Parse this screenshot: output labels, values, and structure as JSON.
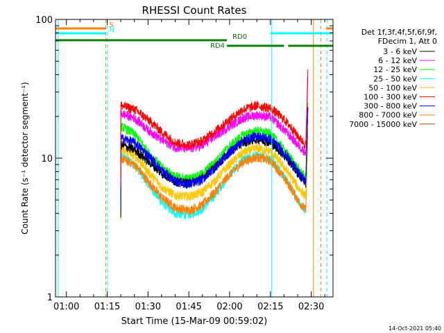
{
  "chart_data": {
    "type": "line",
    "title": "RHESSI Count Rates",
    "xlabel": "Start Time (15-Mar-09 00:59:02)",
    "ylabel": "Count Rate (s⁻¹ detector segment⁻¹)",
    "yscale": "log",
    "ylim": [
      1,
      100
    ],
    "xlim_minutes": [
      -4,
      98
    ],
    "x_tick_labels": [
      "01:00",
      "01:15",
      "01:30",
      "01:45",
      "02:00",
      "02:15",
      "02:30"
    ],
    "x_tick_minutes": [
      0,
      15,
      30,
      45,
      60,
      75,
      90
    ],
    "y_tick_labels": [
      "1",
      "10",
      "100"
    ],
    "y_tick_values": [
      1,
      10,
      100
    ],
    "legend_header": [
      "Det 1f,3f,4f,5f,6f,9f,",
      "FDecim 1, Att 0"
    ],
    "legend_placement": "right-outside",
    "timestamp": "14-Oct-2021 05:40",
    "series": [
      {
        "name": "3 - 6 keV",
        "color": "#000000",
        "x": [
          20,
          25,
          30,
          35,
          40,
          45,
          50,
          55,
          60,
          65,
          70,
          75,
          80,
          85,
          88
        ],
        "y": [
          12.5,
          11.5,
          9.5,
          7.8,
          6.8,
          6.6,
          7.2,
          8.7,
          11.0,
          13.0,
          13.8,
          13.0,
          10.5,
          7.8,
          6.6
        ]
      },
      {
        "name": "6 - 12 keV",
        "color": "#ff00ff",
        "x": [
          20,
          25,
          30,
          35,
          40,
          45,
          50,
          55,
          60,
          65,
          70,
          75,
          80,
          85,
          88
        ],
        "y": [
          21.0,
          19.5,
          16.0,
          13.5,
          12.0,
          11.7,
          12.3,
          14.5,
          17.0,
          19.5,
          20.5,
          19.8,
          16.0,
          12.5,
          11.0
        ]
      },
      {
        "name": "12 - 25 keV",
        "color": "#00ff00",
        "x": [
          20,
          25,
          30,
          35,
          40,
          45,
          50,
          55,
          60,
          65,
          70,
          75,
          80,
          85,
          88
        ],
        "y": [
          17.0,
          15.0,
          11.0,
          8.6,
          7.4,
          7.1,
          7.7,
          9.5,
          12.2,
          14.7,
          15.8,
          15.0,
          11.5,
          8.5,
          7.2
        ]
      },
      {
        "name": "25 - 50 keV",
        "color": "#00ffff",
        "x": [
          20,
          25,
          30,
          35,
          40,
          45,
          50,
          55,
          60,
          65,
          70,
          75,
          80,
          85,
          88
        ],
        "y": [
          10.5,
          9.0,
          6.5,
          4.8,
          4.0,
          3.9,
          4.3,
          5.5,
          7.6,
          9.7,
          10.5,
          10.0,
          7.4,
          5.0,
          4.2
        ]
      },
      {
        "name": "50 - 100 keV",
        "color": "#ffc800",
        "x": [
          20,
          25,
          30,
          35,
          40,
          45,
          50,
          55,
          60,
          65,
          70,
          75,
          80,
          85,
          88
        ],
        "y": [
          11.5,
          10.5,
          8.0,
          6.2,
          5.4,
          5.3,
          5.7,
          7.0,
          9.0,
          11.0,
          11.8,
          11.2,
          8.6,
          6.2,
          5.3
        ]
      },
      {
        "name": "100 - 300 keV",
        "color": "#ff0000",
        "x": [
          20,
          25,
          30,
          35,
          40,
          45,
          50,
          55,
          60,
          65,
          70,
          75,
          80,
          85,
          88
        ],
        "y": [
          24.0,
          22.5,
          19.0,
          15.5,
          13.0,
          12.5,
          13.3,
          15.8,
          19.0,
          22.5,
          24.0,
          23.0,
          19.0,
          14.5,
          12.5
        ]
      },
      {
        "name": "300 - 800 keV",
        "color": "#0000ff",
        "x": [
          20,
          25,
          30,
          35,
          40,
          45,
          50,
          55,
          60,
          65,
          70,
          75,
          80,
          85,
          88
        ],
        "y": [
          14.0,
          13.0,
          10.5,
          8.2,
          6.8,
          6.5,
          7.0,
          8.7,
          11.0,
          13.5,
          14.5,
          13.8,
          11.0,
          8.0,
          6.7
        ]
      },
      {
        "name": "800 - 7000 keV",
        "color": "#ff8000",
        "x": [
          20,
          25,
          30,
          35,
          40,
          45,
          50,
          55,
          60,
          65,
          70,
          75,
          80,
          85,
          88
        ],
        "y": [
          10.0,
          9.0,
          6.8,
          5.2,
          4.4,
          4.2,
          4.6,
          5.8,
          7.6,
          9.4,
          10.2,
          9.6,
          7.2,
          5.0,
          4.2
        ]
      },
      {
        "name": "7000 - 15000 keV",
        "color": "#a05000",
        "x": [],
        "y": []
      }
    ],
    "attenuator_bars": [
      {
        "label": "S",
        "color": "#ff8000",
        "segments": [
          [
            -4,
            14.5
          ],
          [
            95.5,
            98
          ]
        ],
        "level": 0
      },
      {
        "label": "N",
        "color": "#00ffff",
        "segments": [
          [
            -4,
            14.5
          ],
          [
            75,
            98
          ]
        ],
        "level": 1
      },
      {
        "label": "RD0",
        "color": "#008000",
        "segments": [
          [
            -4,
            59
          ]
        ],
        "level": 2
      },
      {
        "label": "RD4",
        "color": "#008000",
        "segments": [
          [
            59,
            80
          ],
          [
            81.5,
            98
          ]
        ],
        "level": 3
      }
    ],
    "vertical_markers": [
      {
        "color": "#00ffff",
        "style": "solid",
        "x": -3
      },
      {
        "color": "#ff8000",
        "style": "dashed",
        "x": 14.5
      },
      {
        "color": "#00ffff",
        "style": "dashed",
        "x": 15.1
      },
      {
        "color": "#00ffff",
        "style": "solid",
        "x": 75.5
      },
      {
        "color": "#ff8000",
        "style": "solid",
        "x": 90.8
      },
      {
        "color": "#ff8000",
        "style": "dashed",
        "x": 93.5
      },
      {
        "color": "#00ffff",
        "style": "dashed",
        "x": 95.8
      }
    ]
  }
}
